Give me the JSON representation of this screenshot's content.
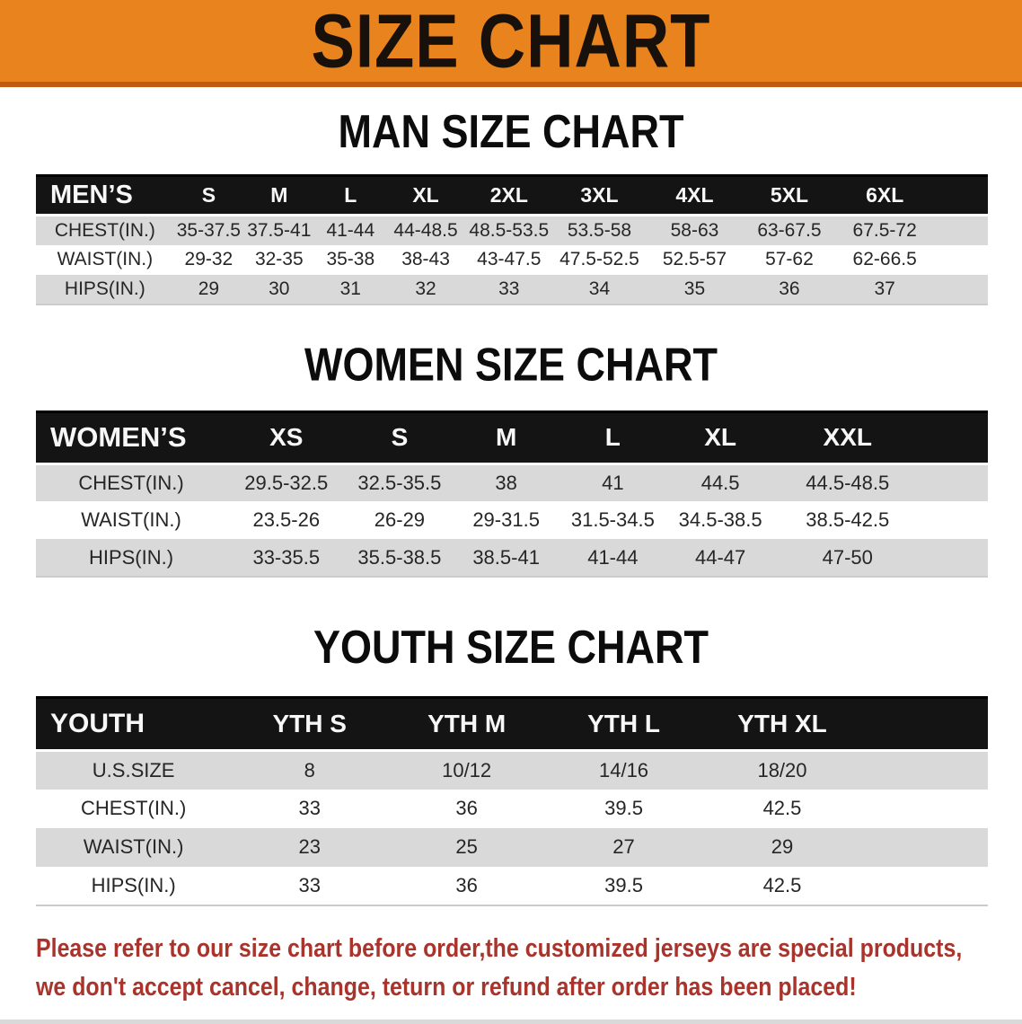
{
  "banner": {
    "title": "SIZE CHART",
    "bg_color": "#E8831D",
    "edge_color": "#C05C10",
    "text_color": "#17100b"
  },
  "sections": [
    {
      "id": "men",
      "title": "MAN SIZE CHART",
      "header": [
        "MEN’S",
        "S",
        "M",
        "L",
        "XL",
        "2XL",
        "3XL",
        "4XL",
        "5XL",
        "6XL"
      ],
      "rows": [
        [
          "CHEST(IN.)",
          "35-37.5",
          "37.5-41",
          "41-44",
          "44-48.5",
          "48.5-53.5",
          "53.5-58",
          "58-63",
          "63-67.5",
          "67.5-72"
        ],
        [
          "WAIST(IN.)",
          "29-32",
          "32-35",
          "35-38",
          "38-43",
          "43-47.5",
          "47.5-52.5",
          "52.5-57",
          "57-62",
          "62-66.5"
        ],
        [
          "HIPS(IN.)",
          "29",
          "30",
          "31",
          "32",
          "33",
          "34",
          "35",
          "36",
          "37"
        ]
      ],
      "row_shading": [
        "gray",
        "white",
        "gray"
      ]
    },
    {
      "id": "women",
      "title": "WOMEN SIZE CHART",
      "header": [
        "WOMEN’S",
        "XS",
        "S",
        "M",
        "L",
        "XL",
        "XXL"
      ],
      "rows": [
        [
          "CHEST(IN.)",
          "29.5-32.5",
          "32.5-35.5",
          "38",
          "41",
          "44.5",
          "44.5-48.5"
        ],
        [
          "WAIST(IN.)",
          "23.5-26",
          "26-29",
          "29-31.5",
          "31.5-34.5",
          "34.5-38.5",
          "38.5-42.5"
        ],
        [
          "HIPS(IN.)",
          "33-35.5",
          "35.5-38.5",
          "38.5-41",
          "41-44",
          "44-47",
          "47-50"
        ]
      ],
      "row_shading": [
        "gray",
        "white",
        "gray"
      ]
    },
    {
      "id": "youth",
      "title": "YOUTH SIZE CHART",
      "header": [
        "YOUTH",
        "YTH S",
        "YTH M",
        "YTH L",
        "YTH XL"
      ],
      "rows": [
        [
          "U.S.SIZE",
          "8",
          "10/12",
          "14/16",
          "18/20"
        ],
        [
          "CHEST(IN.)",
          "33",
          "36",
          "39.5",
          "42.5"
        ],
        [
          "WAIST(IN.)",
          "23",
          "25",
          "27",
          "29"
        ],
        [
          "HIPS(IN.)",
          "33",
          "36",
          "39.5",
          "42.5"
        ]
      ],
      "row_shading": [
        "gray",
        "white",
        "gray",
        "white"
      ]
    }
  ],
  "disclaimer": {
    "line1": "Please refer to our size chart before order,the customized jerseys are special products,",
    "line2": "we don't accept cancel, change, teturn or refund after order has been placed!",
    "color": "#A8342C"
  },
  "colors": {
    "table_header_bg": "#141414",
    "table_header_text": "#F7F7F7",
    "row_gray": "#D9D9D9",
    "row_white": "#FFFFFF",
    "body_text": "#262626"
  }
}
